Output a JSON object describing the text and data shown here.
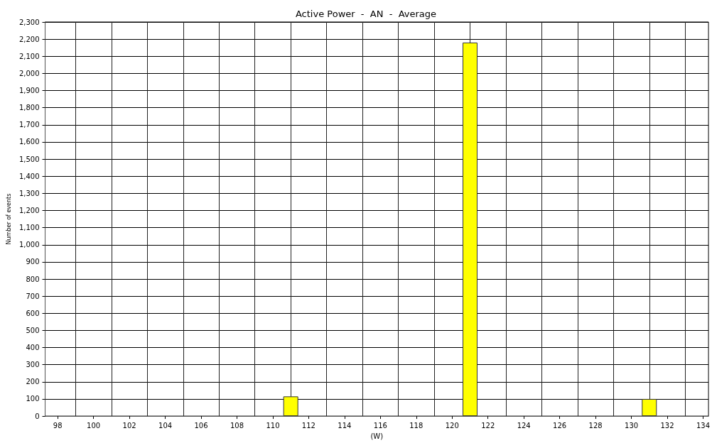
{
  "chart_data": {
    "type": "bar",
    "title": "Active Power  -  AN  -  Average",
    "xlabel": "(W)",
    "ylabel": "Number of events",
    "x": [
      111,
      121,
      131
    ],
    "values": [
      115,
      2180,
      100
    ],
    "color": "#ffff00",
    "xlim": [
      97.3,
      134.3
    ],
    "xticks": [
      98,
      100,
      102,
      104,
      106,
      108,
      110,
      112,
      114,
      116,
      118,
      120,
      122,
      124,
      126,
      128,
      130,
      132,
      134,
      {
        "value": 99,
        "label": null
      },
      {
        "value": 101,
        "label": null
      },
      {
        "value": 103,
        "label": null
      },
      {
        "value": 105,
        "label": null
      },
      {
        "value": 107,
        "label": null
      },
      {
        "value": 109,
        "label": null
      },
      {
        "value": 111,
        "label": null
      },
      {
        "value": 113,
        "label": null
      },
      {
        "value": 115,
        "label": null
      },
      {
        "value": 117,
        "label": null
      },
      {
        "value": 119,
        "label": null
      },
      {
        "value": 121,
        "label": null
      },
      {
        "value": 123,
        "label": null
      },
      {
        "value": 125,
        "label": null
      },
      {
        "value": 127,
        "label": null
      },
      {
        "value": 129,
        "label": null
      },
      {
        "value": 131,
        "label": null
      },
      {
        "value": 133,
        "label": null
      }
    ],
    "ylim": [
      0,
      2300
    ],
    "yticks": [
      0,
      100,
      200,
      300,
      400,
      500,
      600,
      700,
      800,
      900,
      {
        "value": 1000,
        "label": "1,000"
      },
      {
        "value": 1100,
        "label": "1,100"
      },
      {
        "value": 1200,
        "label": "1,200"
      },
      {
        "value": 1300,
        "label": "1,300"
      },
      {
        "value": 1400,
        "label": "1,400"
      },
      {
        "value": 1500,
        "label": "1,500"
      },
      {
        "value": 1600,
        "label": "1,600"
      },
      {
        "value": 1700,
        "label": "1,700"
      },
      {
        "value": 1800,
        "label": "1,800"
      },
      {
        "value": 1900,
        "label": "1,900"
      },
      {
        "value": 2000,
        "label": "2,000"
      },
      {
        "value": 2100,
        "label": "2,100"
      },
      {
        "value": 2200,
        "label": "2,200"
      },
      {
        "value": 2300,
        "label": "2,300"
      }
    ],
    "grid": true
  }
}
